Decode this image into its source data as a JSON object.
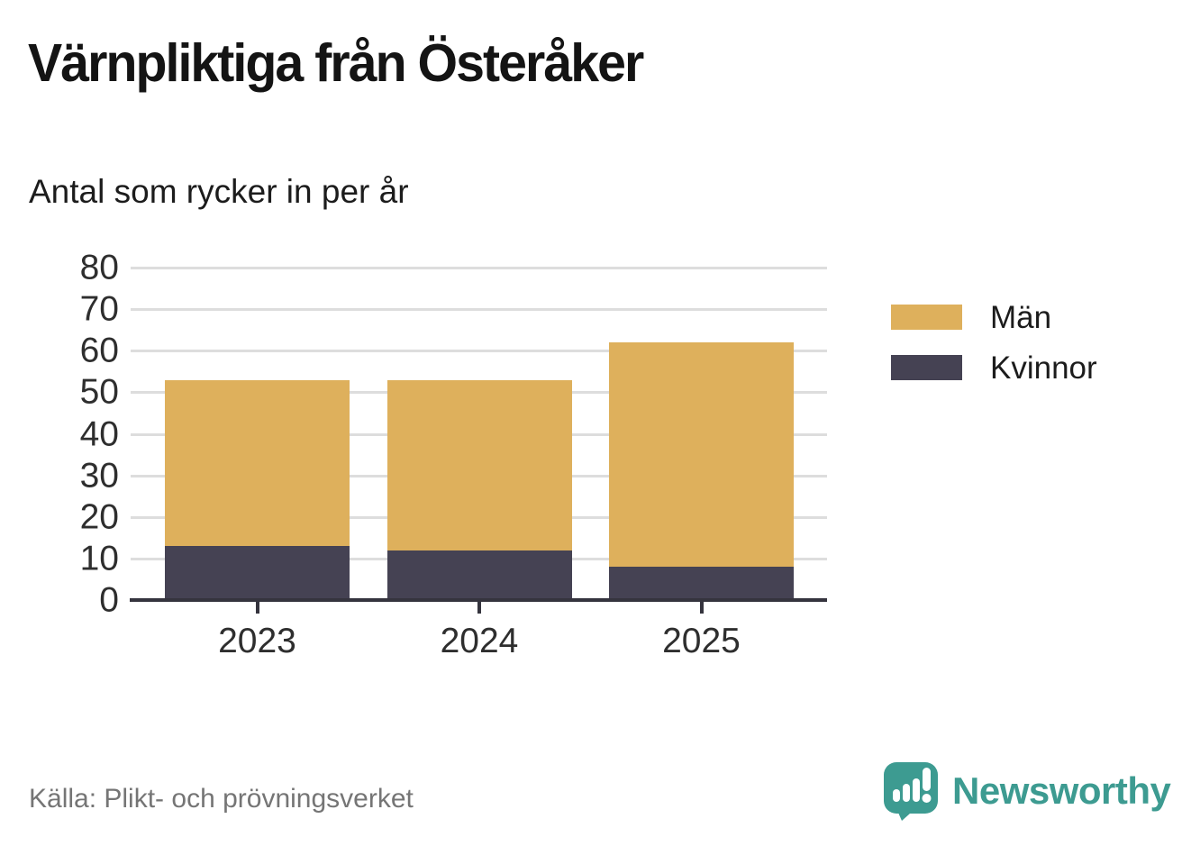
{
  "figure": {
    "title": "Värnpliktiga från Österåker",
    "subtitle": "Antal som rycker in per år",
    "source": "Källa: Plikt- och prövningsverket",
    "brand": "Newsworthy"
  },
  "chart_data": {
    "type": "bar",
    "stacked": true,
    "title": "Värnpliktiga från Österåker",
    "subtitle": "Antal som rycker in per år",
    "categories": [
      "2023",
      "2024",
      "2025"
    ],
    "series": [
      {
        "name": "Män",
        "color": "#deb05c",
        "values": [
          40,
          41,
          54
        ]
      },
      {
        "name": "Kvinnor",
        "color": "#454253",
        "values": [
          13,
          12,
          8
        ]
      }
    ],
    "stack_order": [
      "Kvinnor",
      "Män"
    ],
    "totals": [
      53,
      53,
      62
    ],
    "ylabel": "",
    "xlabel": "",
    "ylim": [
      0,
      80
    ],
    "ytick_step": 10,
    "yticks": [
      0,
      10,
      20,
      30,
      40,
      50,
      60,
      70,
      80
    ],
    "grid": true,
    "legend_position": "right",
    "source": "Källa: Plikt- och prövningsverket"
  },
  "legend": {
    "items": [
      {
        "label": "Män",
        "color": "#deb05c"
      },
      {
        "label": "Kvinnor",
        "color": "#454253"
      }
    ]
  },
  "colors": {
    "men": "#deb05c",
    "women": "#454253",
    "grid": "#dddddd",
    "axis": "#35343e",
    "title_text": "#141414",
    "tick_label": "#2e2e2e",
    "source_text": "#757575",
    "brand_teal": "#3d9b91"
  }
}
